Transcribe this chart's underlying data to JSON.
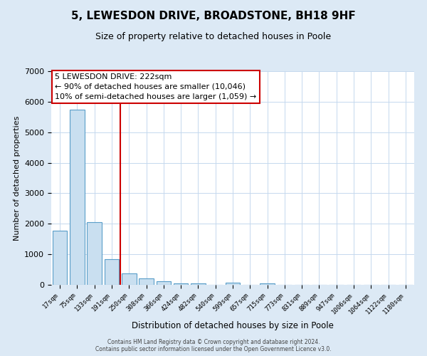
{
  "title": "5, LEWESDON DRIVE, BROADSTONE, BH18 9HF",
  "subtitle": "Size of property relative to detached houses in Poole",
  "xlabel": "Distribution of detached houses by size in Poole",
  "ylabel": "Number of detached properties",
  "bar_labels": [
    "17sqm",
    "75sqm",
    "133sqm",
    "191sqm",
    "250sqm",
    "308sqm",
    "366sqm",
    "424sqm",
    "482sqm",
    "540sqm",
    "599sqm",
    "657sqm",
    "715sqm",
    "773sqm",
    "831sqm",
    "889sqm",
    "947sqm",
    "1006sqm",
    "1064sqm",
    "1122sqm",
    "1180sqm"
  ],
  "bar_values": [
    1780,
    5750,
    2060,
    840,
    370,
    220,
    110,
    50,
    50,
    0,
    60,
    0,
    50,
    0,
    0,
    0,
    0,
    0,
    0,
    0,
    0
  ],
  "bar_color": "#c9dff0",
  "bar_edge_color": "#5a9ec9",
  "vline_x_index": 3.5,
  "vline_color": "#cc0000",
  "annotation_title": "5 LEWESDON DRIVE: 222sqm",
  "annotation_line1": "← 90% of detached houses are smaller (10,046)",
  "annotation_line2": "10% of semi-detached houses are larger (1,059) →",
  "ylim": [
    0,
    7000
  ],
  "yticks": [
    0,
    1000,
    2000,
    3000,
    4000,
    5000,
    6000,
    7000
  ],
  "bg_color": "#dce9f5",
  "plot_bg_color": "#ffffff",
  "grid_color": "#c5d8ee",
  "footer_line1": "Contains HM Land Registry data © Crown copyright and database right 2024.",
  "footer_line2": "Contains public sector information licensed under the Open Government Licence v3.0."
}
